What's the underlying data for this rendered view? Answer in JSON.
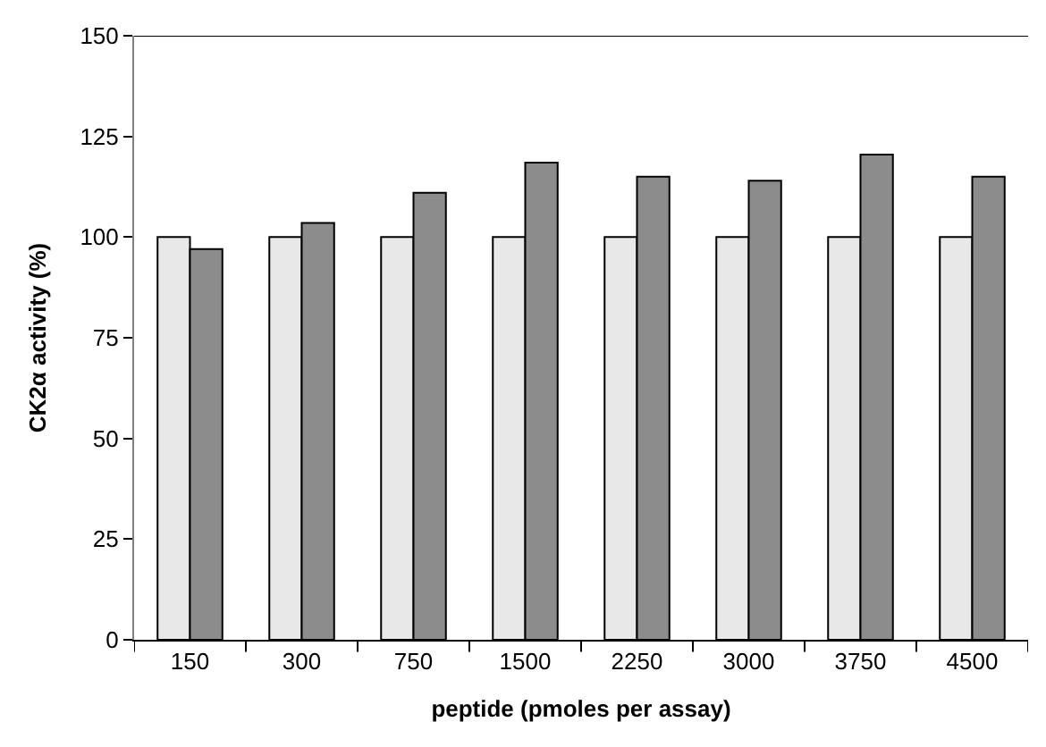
{
  "chart_data": {
    "type": "bar",
    "xlabel": "peptide (pmoles per assay)",
    "ylabel": "CK2α activity (%)",
    "categories": [
      "150",
      "300",
      "750",
      "1500",
      "2250",
      "3000",
      "3750",
      "4500"
    ],
    "series": [
      {
        "color": "#e8e8e8",
        "values": [
          100,
          100,
          100,
          100,
          100,
          100,
          100,
          100
        ]
      },
      {
        "color": "#8c8c8c",
        "values": [
          97,
          103.5,
          111,
          118.5,
          115,
          114,
          120.5,
          115
        ]
      }
    ],
    "ylim": [
      0,
      150
    ],
    "yticks": [
      0,
      25,
      50,
      75,
      100,
      125,
      150
    ]
  }
}
